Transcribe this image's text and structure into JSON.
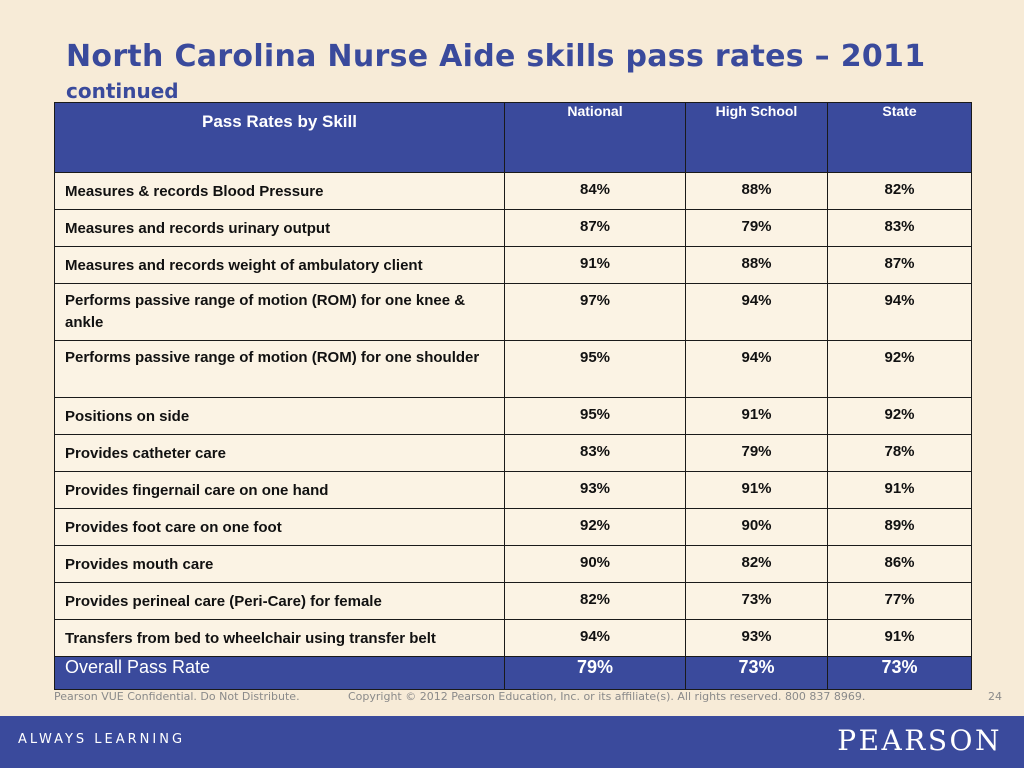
{
  "slide": {
    "title": "North Carolina Nurse Aide skills pass rates – 2011",
    "subtitle": "continued"
  },
  "table": {
    "headers": [
      "Pass Rates by Skill",
      "National",
      "High School",
      "State"
    ],
    "rows": [
      [
        "Measures & records Blood Pressure",
        "84%",
        "88%",
        "82%"
      ],
      [
        "Measures and records urinary output",
        "87%",
        "79%",
        "83%"
      ],
      [
        "Measures and records weight of ambulatory client",
        "91%",
        "88%",
        "87%"
      ],
      [
        "Performs passive range of motion (ROM) for one knee & ankle",
        "97%",
        "94%",
        "94%"
      ],
      [
        "Performs passive range of motion (ROM) for one shoulder",
        "95%",
        "94%",
        "92%"
      ],
      [
        "Positions on side",
        "95%",
        "91%",
        "92%"
      ],
      [
        "Provides catheter care",
        "83%",
        "79%",
        "78%"
      ],
      [
        "Provides fingernail care on one hand",
        "93%",
        "91%",
        "91%"
      ],
      [
        "Provides foot care on one foot",
        "92%",
        "90%",
        "89%"
      ],
      [
        "Provides mouth care",
        "90%",
        "82%",
        "86%"
      ],
      [
        "Provides perineal care (Peri-Care) for female",
        "82%",
        "73%",
        "77%"
      ],
      [
        "Transfers from bed to wheelchair using transfer belt",
        "94%",
        "93%",
        "91%"
      ]
    ],
    "footer": [
      "Overall Pass Rate",
      "79%",
      "73%",
      "73%"
    ]
  },
  "footer": {
    "confidential": "Pearson VUE Confidential. Do Not Distribute.",
    "copyright": "Copyright © 2012 Pearson Education, Inc. or its affiliate(s). All rights reserved. 800 837 8969.",
    "page_number": "24",
    "tagline": "ALWAYS LEARNING",
    "logo": "PEARSON"
  },
  "colors": {
    "background": "#f7ebd7",
    "brand_blue": "#3a4a9c",
    "cell_background": "#fbf3e4"
  }
}
